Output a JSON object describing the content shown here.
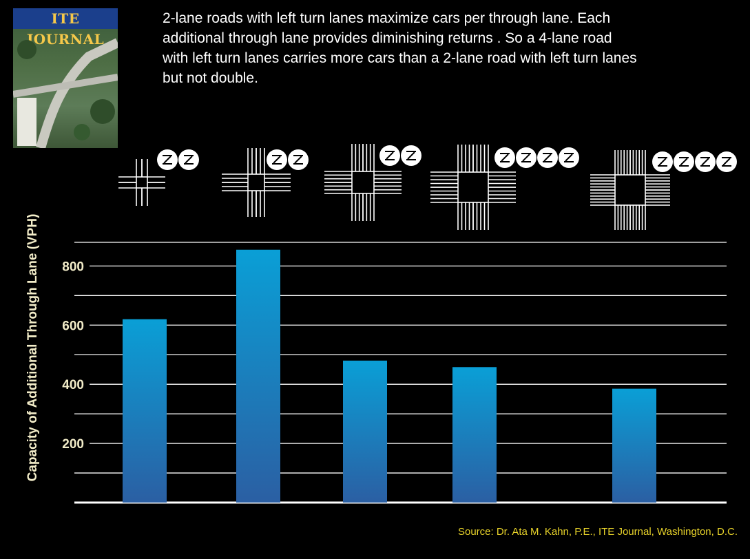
{
  "header": {
    "cover_title": "ITE JOURNAL",
    "text": "2-lane roads with left turn lanes  maximize cars per through lane.  Each\nadditional through lane provides  diminishing returns .  So a 4-lane road\nwith left turn lanes carries more  cars than a 2-lane road with left turn lanes\nbut not double."
  },
  "footer": {
    "source": "Source: Dr. Ata M. Kahn, P.E., ITE Journal, Washington, D.C."
  },
  "colors": {
    "background": "#000000",
    "bar_top": "#0a9fd6",
    "bar_bottom": "#2b5fa3",
    "grid": "#ffffff",
    "label": "#f2ecc8",
    "source": "#e8d32a"
  },
  "chart_data": {
    "type": "bar",
    "ylabel": "Capacity of Additional Through Lane (VPH)",
    "xlabel": "",
    "title": "",
    "categories": [
      "",
      "",
      "",
      "",
      ""
    ],
    "values": [
      620,
      855,
      480,
      458,
      385
    ],
    "yticks": [
      200,
      400,
      600,
      800
    ],
    "ylim": [
      0,
      880
    ],
    "grid": true
  }
}
